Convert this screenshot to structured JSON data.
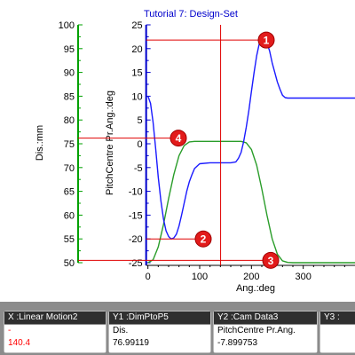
{
  "chart_data": {
    "type": "line",
    "title": "Tutorial 7: Design-Set",
    "xlabel": "Ang.:deg",
    "xlim": [
      -8,
      400
    ],
    "xticks": [
      0,
      100,
      200,
      300
    ],
    "axes": [
      {
        "id": "y1",
        "label": "Dis.:mm",
        "ylim": [
          50,
          100
        ],
        "ticks": [
          50,
          55,
          60,
          65,
          70,
          75,
          80,
          85,
          90,
          95,
          100
        ],
        "color": "#00a000"
      },
      {
        "id": "y2",
        "label": "PitchCentre Pr.Ang.:deg",
        "ylim": [
          -25,
          25
        ],
        "ticks": [
          -25,
          -20,
          -15,
          -10,
          -5,
          0,
          5,
          10,
          15,
          20,
          25
        ],
        "color": "#0000cc"
      }
    ],
    "series": [
      {
        "axis": "y1",
        "color": "#2a9d2a",
        "x": [
          0,
          10,
          20,
          30,
          40,
          50,
          60,
          70,
          80,
          90,
          100,
          120,
          140,
          160,
          180,
          190,
          200,
          210,
          220,
          230,
          240,
          250,
          260,
          270,
          280,
          300,
          330,
          360,
          400
        ],
        "y": [
          50.0,
          50.6,
          53.3,
          58.0,
          63.5,
          68.5,
          72.5,
          74.6,
          75.4,
          75.5,
          75.5,
          75.5,
          75.5,
          75.5,
          75.5,
          75.2,
          73.8,
          70.5,
          65.5,
          60.0,
          55.0,
          51.8,
          50.4,
          50.05,
          50.0,
          50.0,
          50.0,
          50.0,
          50.0
        ]
      },
      {
        "axis": "y2",
        "color": "#1a1aff",
        "x": [
          0,
          5,
          10,
          15,
          20,
          25,
          30,
          35,
          40,
          45,
          50,
          55,
          60,
          65,
          70,
          75,
          80,
          85,
          90,
          100,
          120,
          140,
          160,
          170,
          175,
          180,
          185,
          190,
          195,
          200,
          205,
          210,
          215,
          220,
          225,
          230,
          235,
          240,
          245,
          250,
          255,
          260,
          265,
          270,
          280,
          300,
          330,
          360,
          400
        ],
        "y": [
          10.0,
          8.5,
          4.5,
          -1.0,
          -7.0,
          -12.0,
          -15.8,
          -18.3,
          -19.5,
          -20.0,
          -19.8,
          -19.0,
          -17.3,
          -15.0,
          -12.5,
          -10.0,
          -8.0,
          -6.5,
          -5.2,
          -4.2,
          -4.0,
          -4.0,
          -4.0,
          -3.8,
          -3.0,
          -1.8,
          0.5,
          3.5,
          7.0,
          11.0,
          15.0,
          18.5,
          21.0,
          22.2,
          22.0,
          21.2,
          19.5,
          17.0,
          15.0,
          13.0,
          11.5,
          10.2,
          9.7,
          9.6,
          9.6,
          9.6,
          9.6,
          9.6,
          9.6
        ]
      }
    ],
    "cursor": {
      "x": 140.4
    },
    "markers": [
      {
        "label": "1",
        "axis": "y2",
        "value": 21.8
      },
      {
        "label": "2",
        "axis": "y2",
        "value": -20.0
      },
      {
        "label": "3",
        "axis": "y1",
        "value": 50.5
      },
      {
        "label": "4",
        "axis": "y1",
        "value": 76.2
      }
    ]
  },
  "panel": {
    "boxes": [
      {
        "header": "X :Linear Motion2",
        "line1": "-",
        "line2": "140.4"
      },
      {
        "header": "Y1 :DimPtoP5",
        "line1": "Dis.",
        "line2": "76.99119"
      },
      {
        "header": "Y2 :Cam Data3",
        "line1": "PitchCentre Pr.Ang.",
        "line2": "-7.899753"
      },
      {
        "header": "Y3 :",
        "line1": "",
        "line2": ""
      }
    ]
  }
}
